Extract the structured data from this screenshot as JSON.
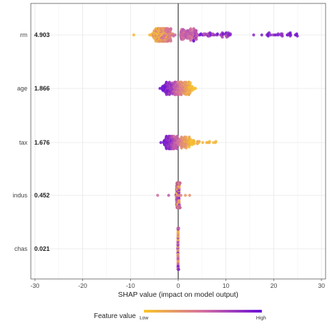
{
  "chart_data": {
    "type": "scatter",
    "subtype": "shap-beeswarm",
    "title": "",
    "xlabel": "SHAP value (impact on model output)",
    "ylabel": "",
    "xlim": [
      -30,
      30
    ],
    "x_ticks": [
      -30,
      -20,
      -10,
      0,
      10,
      20,
      30
    ],
    "grid": true,
    "zero_line": 0,
    "features": [
      {
        "name": "rm",
        "mean_abs_shap": "4.903",
        "shap_range": [
          -9.5,
          25.5
        ],
        "notes": "dense cluster of low-value (orange/pink) points between about -8 and 3; high-value (purple) points spread from about 3 to 25.5"
      },
      {
        "name": "age",
        "mean_abs_shap": "1.866",
        "shap_range": [
          -5.5,
          3.5
        ],
        "notes": "high values (purple) mostly negative around -5 to 0; low values (orange) positive around 0 to 3.5"
      },
      {
        "name": "tax",
        "mean_abs_shap": "1.676",
        "shap_range": [
          -5.5,
          8
        ],
        "notes": "high values (purple) negative around -5 to -1; low values (orange/yellow) positive tail up to about 8"
      },
      {
        "name": "indus",
        "mean_abs_shap": "0.452",
        "shap_range": [
          -4.5,
          2.5
        ],
        "notes": "tight cluster near 0 with a few points out to about -4.5 and 2.5"
      },
      {
        "name": "chas",
        "mean_abs_shap": "0.021",
        "shap_range": [
          -0.3,
          0.5
        ],
        "notes": "all points stacked vertically at about 0"
      }
    ],
    "color_scale": {
      "title": "Feature value",
      "low_label": "Low",
      "high_label": "High",
      "low_color": "#f9c528",
      "mid_color": "#d46fa0",
      "high_color": "#6a0dd8"
    },
    "legend_placement": "bottom-center"
  }
}
